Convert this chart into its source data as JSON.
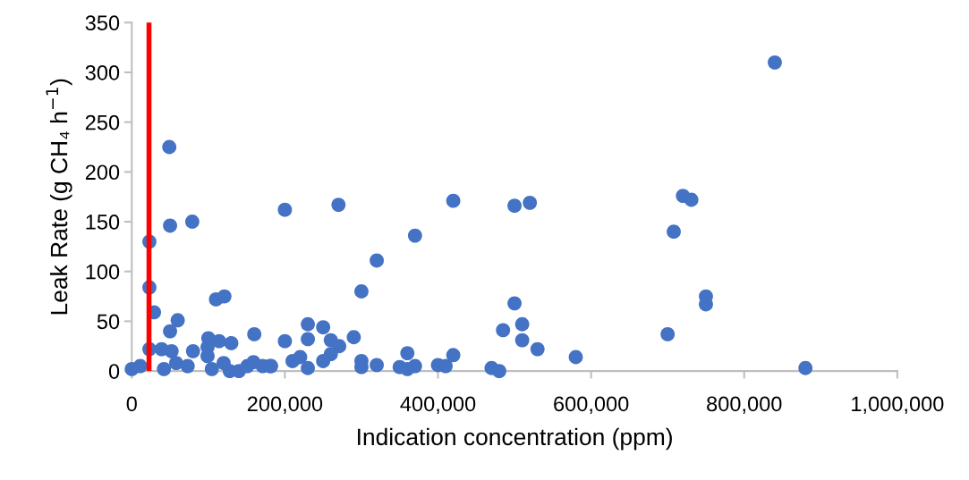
{
  "chart_data": {
    "type": "scatter",
    "xlabel": "Indication concentration (ppm)",
    "ylabel": "Leak Rate (g CH₄ h$^{−1}$)",
    "x": [
      840000,
      49000,
      23000,
      50000,
      79000,
      200000,
      270000,
      420000,
      500000,
      520000,
      720000,
      731000,
      708000,
      750000,
      750000,
      700000,
      880000,
      370000,
      320000,
      300000,
      500000,
      510000,
      485000,
      510000,
      530000,
      580000,
      230000,
      250000,
      200000,
      230000,
      260000,
      271000,
      290000,
      260000,
      250000,
      210000,
      220000,
      230000,
      182000,
      300000,
      300000,
      320000,
      350000,
      360000,
      370000,
      360000,
      400000,
      410000,
      420000,
      470000,
      480000,
      23000,
      29000,
      60000,
      50000,
      110000,
      121000,
      100000,
      114000,
      130000,
      160000,
      23000,
      39000,
      52000,
      80000,
      99000,
      99000,
      0,
      11000,
      42000,
      58000,
      73000,
      104600,
      120000,
      128000,
      140000,
      151000,
      159000,
      171000,
      180600
    ],
    "values": [
      310,
      225,
      130,
      146,
      150,
      162,
      167,
      171,
      166,
      169,
      176,
      172,
      140,
      75,
      67,
      37,
      3,
      136,
      111,
      80,
      68,
      47,
      41,
      31,
      22,
      14,
      47,
      44,
      30,
      32,
      31,
      25,
      34,
      17,
      10,
      10,
      14,
      3,
      5,
      10,
      4,
      6,
      4,
      2,
      5,
      18,
      6,
      5,
      16,
      3,
      0,
      84,
      59,
      51,
      40,
      72,
      75,
      33,
      30,
      28,
      37,
      22,
      22,
      20,
      20,
      24,
      15,
      2,
      5,
      2,
      8,
      5,
      2,
      8,
      0,
      0,
      5,
      9,
      5,
      5
    ],
    "color": "#4472c4",
    "marker": "circle",
    "xlim": [
      0,
      1000000
    ],
    "ylim": [
      0,
      350
    ],
    "xticks": [
      {
        "value": 0,
        "label": "0"
      },
      {
        "value": 200000,
        "label": "200,000"
      },
      {
        "value": 400000,
        "label": "400,000"
      },
      {
        "value": 600000,
        "label": "600,000"
      },
      {
        "value": 800000,
        "label": "800,000"
      },
      {
        "value": 1000000,
        "label": "1,000,000"
      }
    ],
    "yticks": [
      0,
      50,
      100,
      150,
      200,
      250,
      300,
      350
    ],
    "ref_lines": [
      {
        "axis": "x",
        "value": 22500,
        "color": "#ff0000",
        "line_style": "solid"
      }
    ],
    "grid": false,
    "legend": false
  }
}
